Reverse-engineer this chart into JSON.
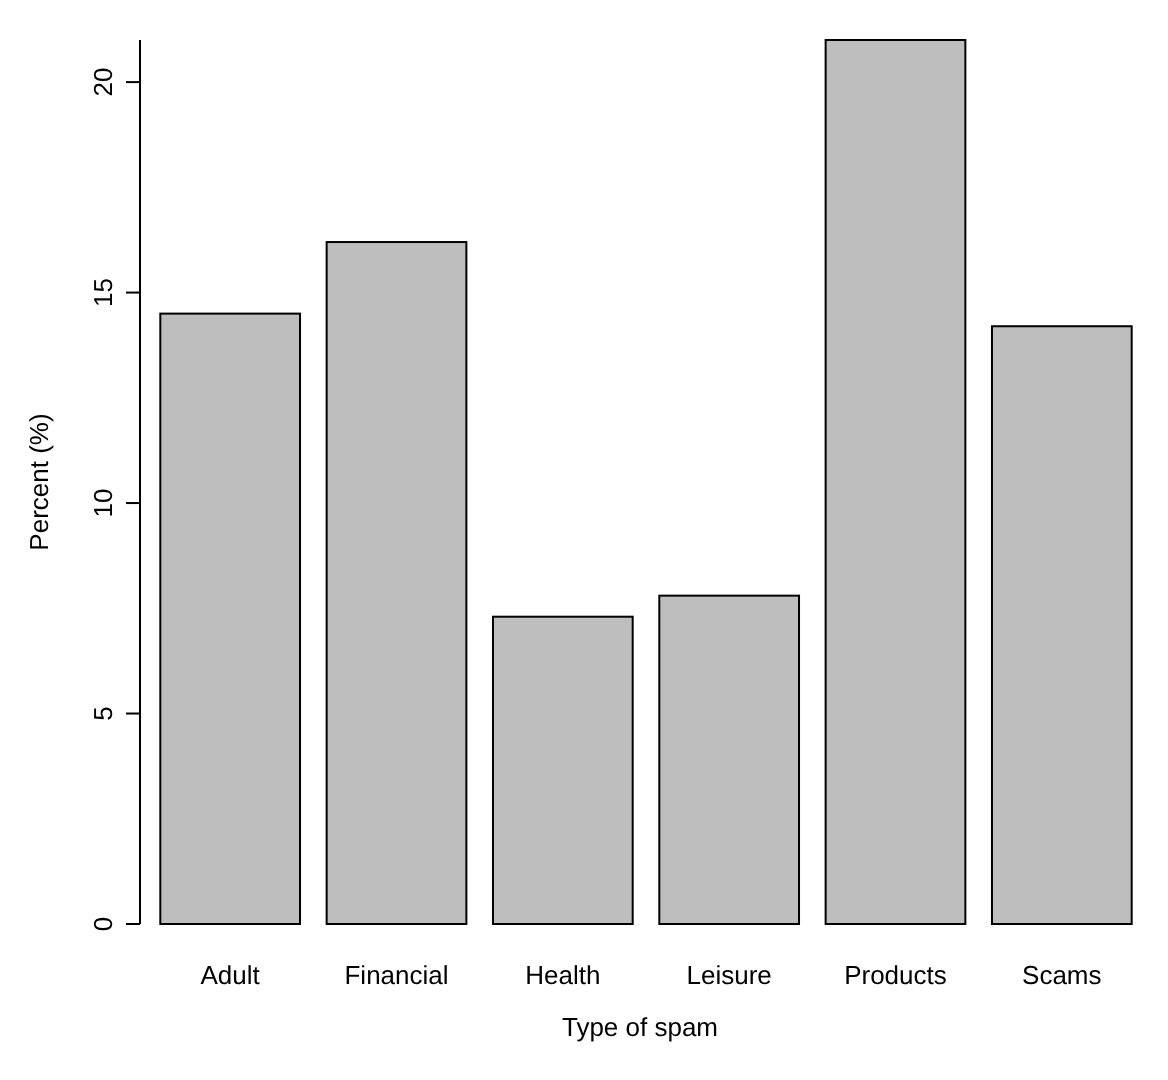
{
  "chart_data": {
    "type": "bar",
    "xlabel": "Type of spam",
    "ylabel": "Percent (%)",
    "categories": [
      "Adult",
      "Financial",
      "Health",
      "Leisure",
      "Products",
      "Scams"
    ],
    "values": [
      14.5,
      16.2,
      7.3,
      7.8,
      21.0,
      14.2
    ],
    "color": "#bebebe",
    "ylim": [
      0,
      21
    ],
    "yticks": [
      0,
      5,
      10,
      15,
      20
    ],
    "grid": false
  }
}
